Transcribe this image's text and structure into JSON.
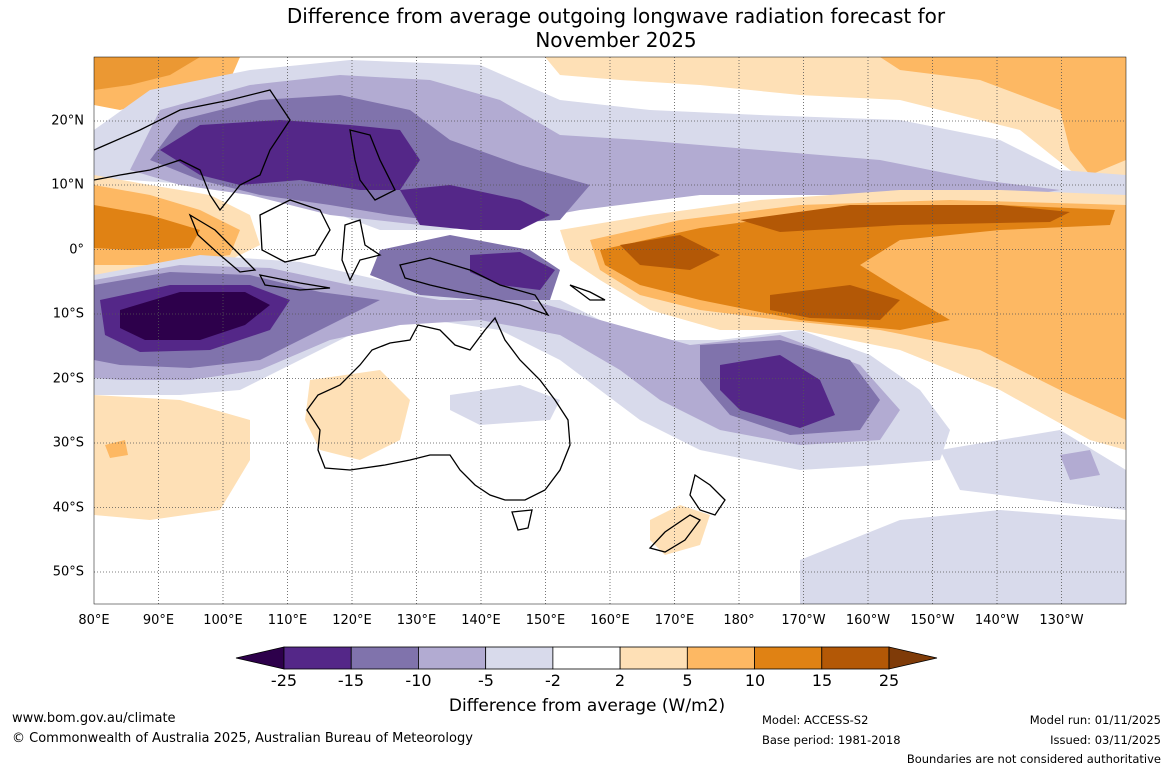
{
  "title": {
    "line1": "Difference from average outgoing longwave radiation forecast for",
    "line2": "November 2025"
  },
  "axes": {
    "longitude_labels": [
      "80°E",
      "90°E",
      "100°E",
      "110°E",
      "120°E",
      "130°E",
      "140°E",
      "150°E",
      "160°E",
      "170°E",
      "180°",
      "170°W",
      "160°W",
      "150°W",
      "140°W",
      "130°W"
    ],
    "latitude_labels": [
      "20°N",
      "10°N",
      "0°",
      "10°S",
      "20°S",
      "30°S",
      "40°S",
      "50°S"
    ]
  },
  "legend": {
    "title": "Difference from average (W/m2)",
    "ticks": [
      "-25",
      "-15",
      "-10",
      "-5",
      "-2",
      "2",
      "5",
      "10",
      "15",
      "25"
    ],
    "colors": [
      "#2d004b",
      "#542788",
      "#8073ac",
      "#b2abd2",
      "#d8daeb",
      "#ffffff",
      "#fee0b6",
      "#fdb863",
      "#e08214",
      "#b35806",
      "#7f3b08"
    ]
  },
  "footer": {
    "website": "www.bom.gov.au/climate",
    "copyright": "© Commonwealth of Australia 2025, Australian Bureau of Meteorology",
    "model": "Model: ACCESS-S2",
    "base_period": "Base period: 1981-2018",
    "model_run": "Model run: 01/11/2025",
    "issued": "Issued: 03/11/2025",
    "disclaimer": "Boundaries are not considered authoritative"
  },
  "map_data": {
    "region": "Australia / Maritime Continent / Western Pacific",
    "lon_range": [
      80,
      240
    ],
    "lat_range": [
      -55,
      30
    ],
    "variable": "Outgoing longwave radiation anomaly",
    "units": "W/m2"
  }
}
